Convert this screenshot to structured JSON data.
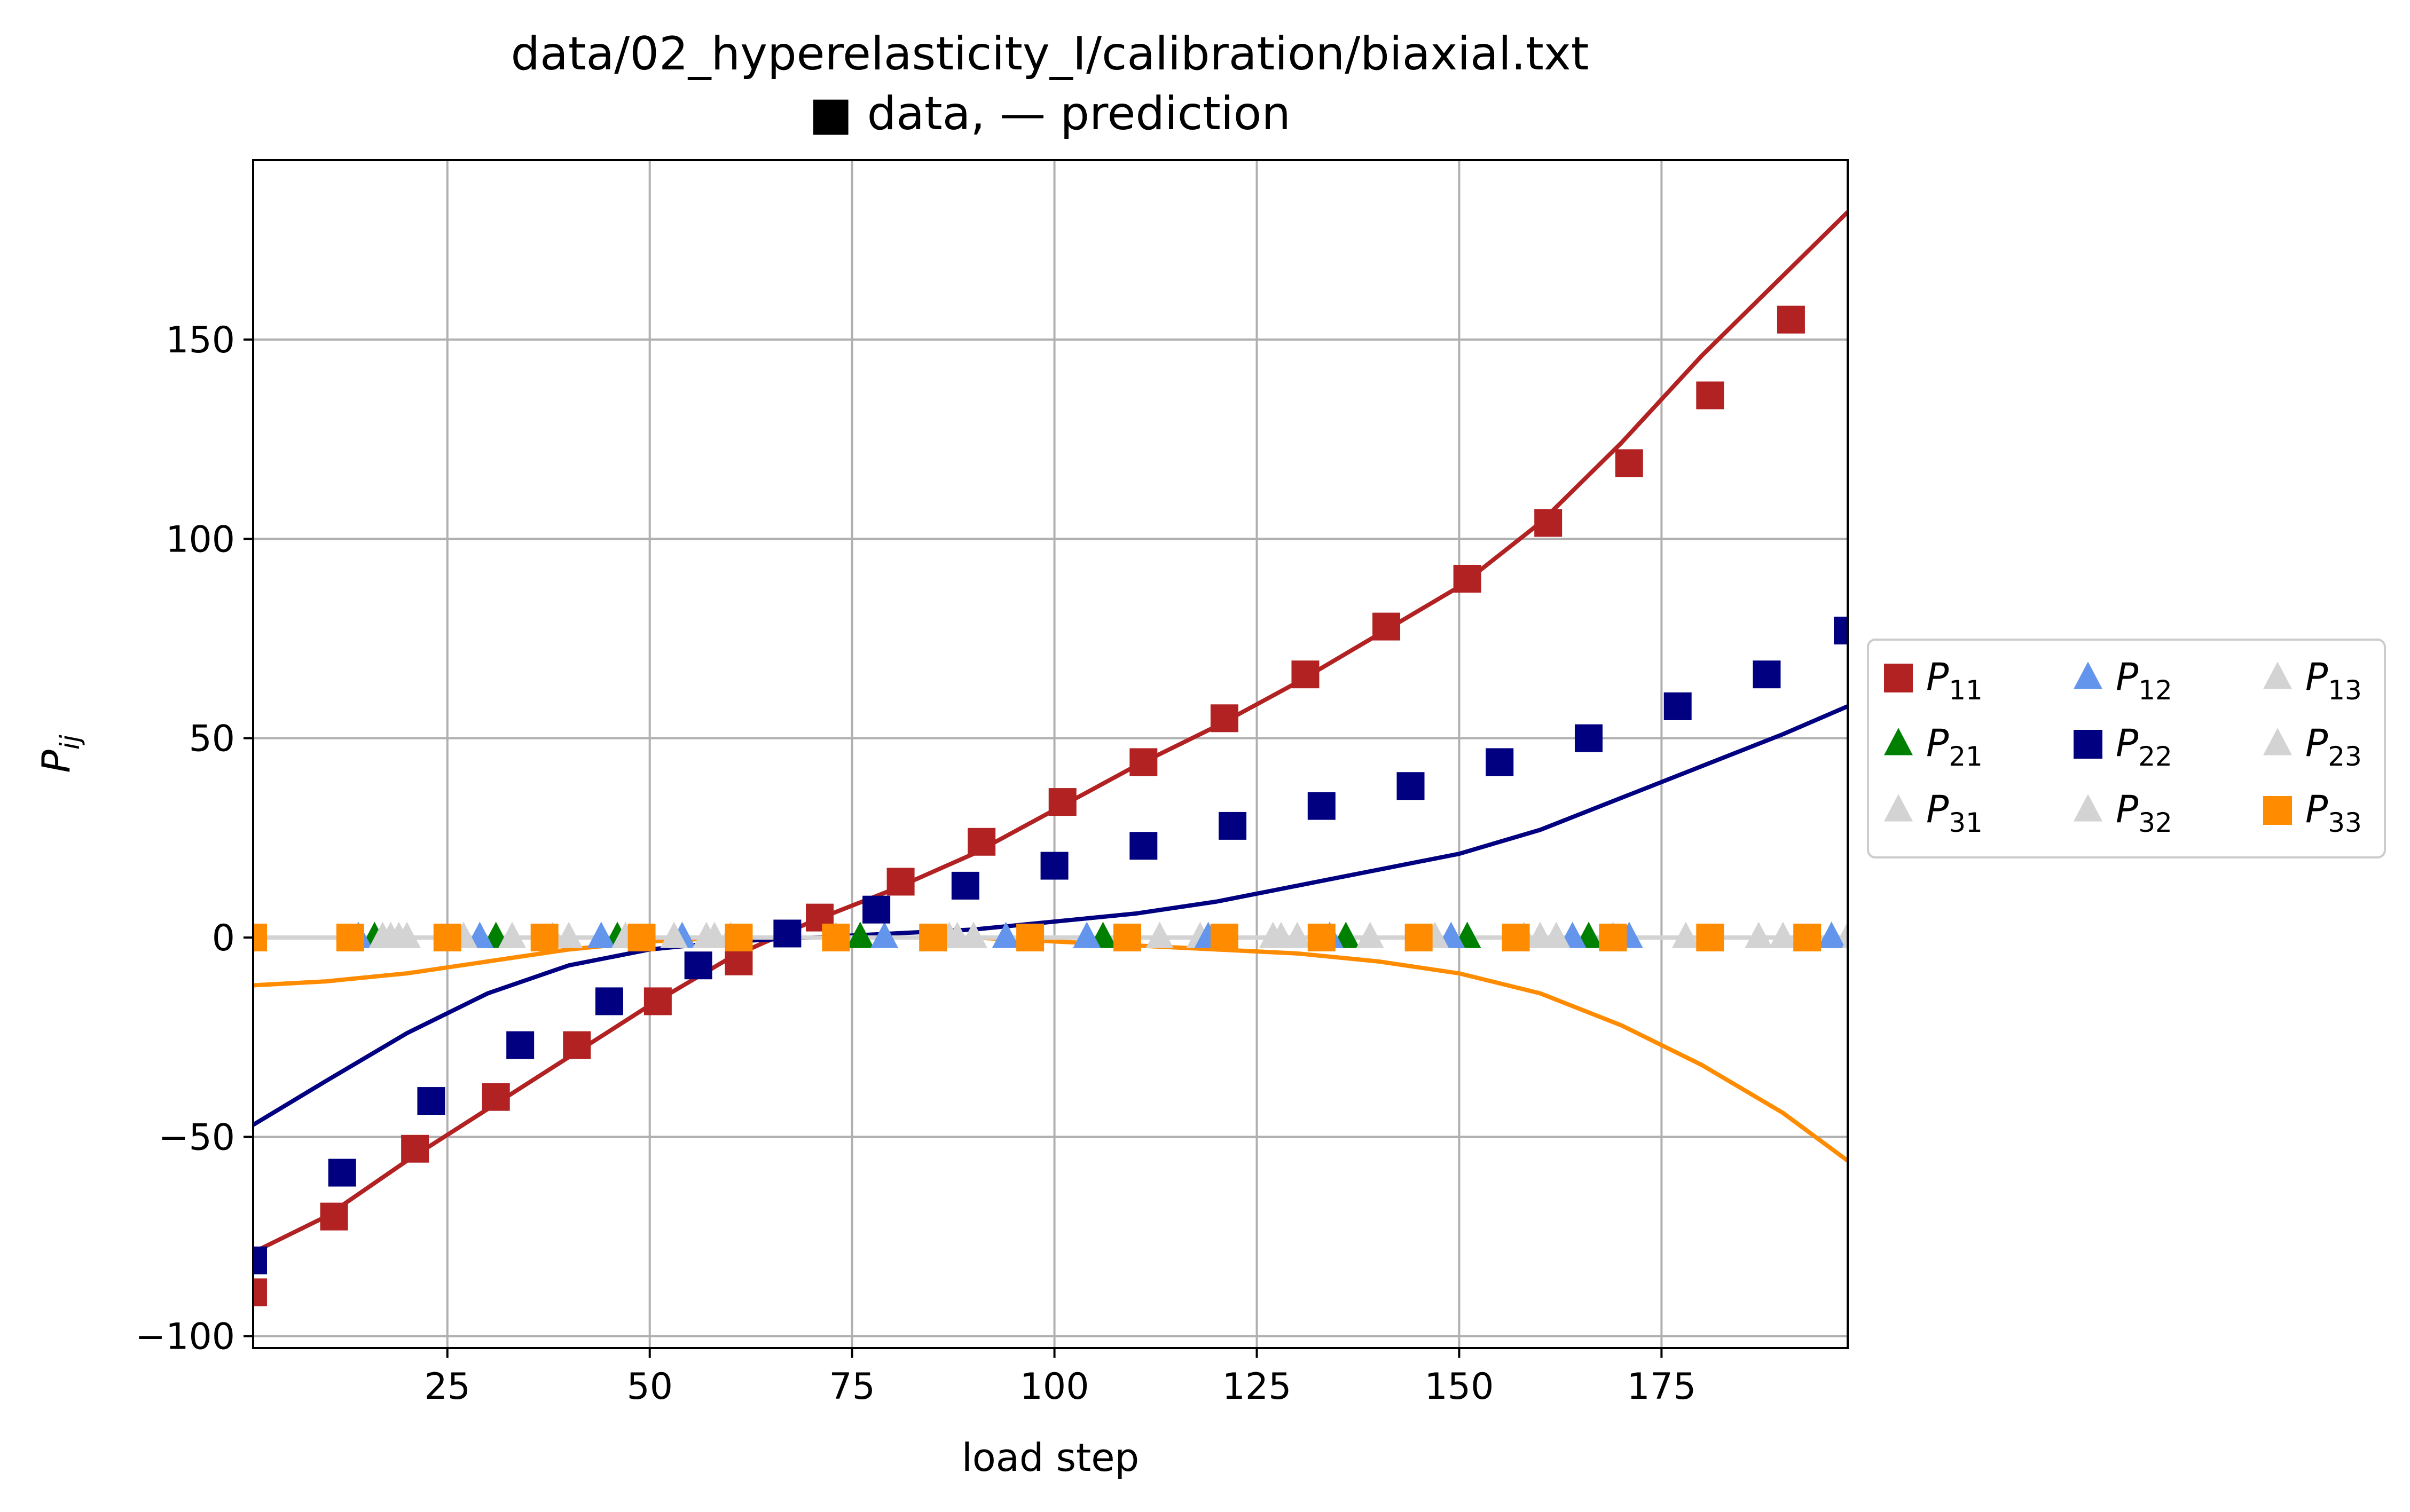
{
  "chart_data": {
    "type": "scatter",
    "title": "data/02_hyperelasticity_I/calibration/biaxial.txt",
    "subtitle": "■ data, — prediction",
    "xlabel": "load step",
    "ylabel": "P",
    "ylabel_sub": "ij",
    "xlim": [
      1,
      198
    ],
    "ylim": [
      -103,
      195
    ],
    "xticks": [
      25,
      50,
      75,
      100,
      125,
      150,
      175
    ],
    "yticks": [
      -100,
      -50,
      0,
      50,
      100,
      150
    ],
    "grid": true,
    "legend_placement": "right",
    "legend_columns": 3,
    "series": [
      {
        "name": "P",
        "sub": "11",
        "marker": "square",
        "color": "#b22222",
        "x": [
          1,
          11,
          21,
          31,
          41,
          51,
          61,
          71,
          81,
          91,
          101,
          111,
          121,
          131,
          141,
          151,
          161,
          171,
          181,
          191
        ],
        "y": [
          -89,
          -70,
          -53,
          -40,
          -27,
          -16,
          -6,
          5,
          14,
          24,
          34,
          44,
          55,
          66,
          78,
          90,
          104,
          119,
          136,
          155
        ]
      },
      {
        "name": "P",
        "sub": "21",
        "marker": "triangle",
        "color": "#008000",
        "x": [
          16,
          31,
          46,
          76,
          106,
          136,
          151,
          166,
          196
        ],
        "y": [
          0,
          0,
          0,
          0,
          0,
          0,
          0,
          0,
          0
        ]
      },
      {
        "name": "P",
        "sub": "31",
        "marker": "triangle",
        "color": "#d3d3d3",
        "x": [
          18,
          38,
          58,
          88,
          118,
          128,
          158,
          178,
          198
        ],
        "y": [
          0,
          0,
          0,
          0,
          0,
          0,
          0,
          0,
          0
        ]
      },
      {
        "name": "P",
        "sub": "12",
        "marker": "triangle",
        "color": "#6495ed",
        "x": [
          14,
          29,
          44,
          54,
          79,
          94,
          104,
          119,
          134,
          149,
          164,
          171,
          196
        ],
        "y": [
          0,
          0,
          0,
          0,
          0,
          0,
          0,
          0,
          0,
          0,
          0,
          0,
          0
        ]
      },
      {
        "name": "P",
        "sub": "22",
        "marker": "square",
        "color": "#000080",
        "x": [
          1,
          12,
          23,
          34,
          45,
          56,
          67,
          78,
          89,
          100,
          111,
          122,
          133,
          144,
          155,
          166,
          177,
          188,
          198
        ],
        "y": [
          -81,
          -59,
          -41,
          -27,
          -16,
          -7,
          1,
          7,
          13,
          18,
          23,
          28,
          33,
          38,
          44,
          50,
          58,
          66,
          77
        ]
      },
      {
        "name": "P",
        "sub": "32",
        "marker": "triangle",
        "color": "#d3d3d3",
        "x": [
          20,
          40,
          60,
          90,
          130,
          160,
          190
        ],
        "y": [
          0,
          0,
          0,
          0,
          0,
          0,
          0
        ]
      },
      {
        "name": "P",
        "sub": "13",
        "marker": "triangle",
        "color": "#d3d3d3",
        "x": [
          17,
          27,
          47,
          57,
          87,
          127,
          147,
          162,
          187
        ],
        "y": [
          0,
          0,
          0,
          0,
          0,
          0,
          0,
          0,
          0
        ]
      },
      {
        "name": "P",
        "sub": "23",
        "marker": "triangle",
        "color": "#d3d3d3",
        "x": [
          19,
          33,
          53,
          73,
          113,
          139,
          169,
          199
        ],
        "y": [
          0,
          0,
          0,
          0,
          0,
          0,
          0,
          0
        ]
      },
      {
        "name": "P",
        "sub": "33",
        "marker": "square",
        "color": "#ff8c00",
        "x": [
          1,
          13,
          25,
          37,
          49,
          61,
          73,
          85,
          97,
          109,
          121,
          133,
          145,
          157,
          169,
          181,
          193
        ],
        "y": [
          0,
          0,
          0,
          0,
          0,
          0,
          0,
          0,
          0,
          0,
          0,
          0,
          0,
          0,
          0,
          0,
          0
        ]
      }
    ],
    "predictions": [
      {
        "color": "#b22222",
        "x": [
          1,
          10,
          20,
          30,
          40,
          50,
          60,
          70,
          80,
          90,
          100,
          110,
          120,
          130,
          140,
          150,
          160,
          170,
          180,
          190,
          198
        ],
        "y": [
          -79,
          -70,
          -56,
          -43,
          -30,
          -17,
          -5,
          4,
          12,
          21,
          32,
          43,
          53,
          64,
          76,
          88,
          104,
          124,
          146,
          166,
          182
        ]
      },
      {
        "color": "#000080",
        "x": [
          1,
          10,
          20,
          30,
          40,
          50,
          60,
          70,
          80,
          90,
          100,
          110,
          120,
          130,
          140,
          150,
          160,
          170,
          180,
          190,
          198
        ],
        "y": [
          -47,
          -36,
          -24,
          -14,
          -7,
          -3,
          -1,
          0,
          1,
          2,
          4,
          6,
          9,
          13,
          17,
          21,
          27,
          35,
          43,
          51,
          58
        ]
      },
      {
        "color": "#ff8c00",
        "x": [
          1,
          10,
          20,
          30,
          40,
          50,
          60,
          70,
          80,
          90,
          100,
          110,
          120,
          130,
          140,
          150,
          160,
          170,
          180,
          190,
          198
        ],
        "y": [
          -12,
          -11,
          -9,
          -6,
          -3,
          -1,
          0,
          0,
          0,
          0,
          -1,
          -2,
          -3,
          -4,
          -6,
          -9,
          -14,
          -22,
          -32,
          -44,
          -56
        ]
      },
      {
        "color": "#d3d3d3",
        "x": [
          1,
          198
        ],
        "y": [
          0,
          0
        ]
      }
    ]
  }
}
